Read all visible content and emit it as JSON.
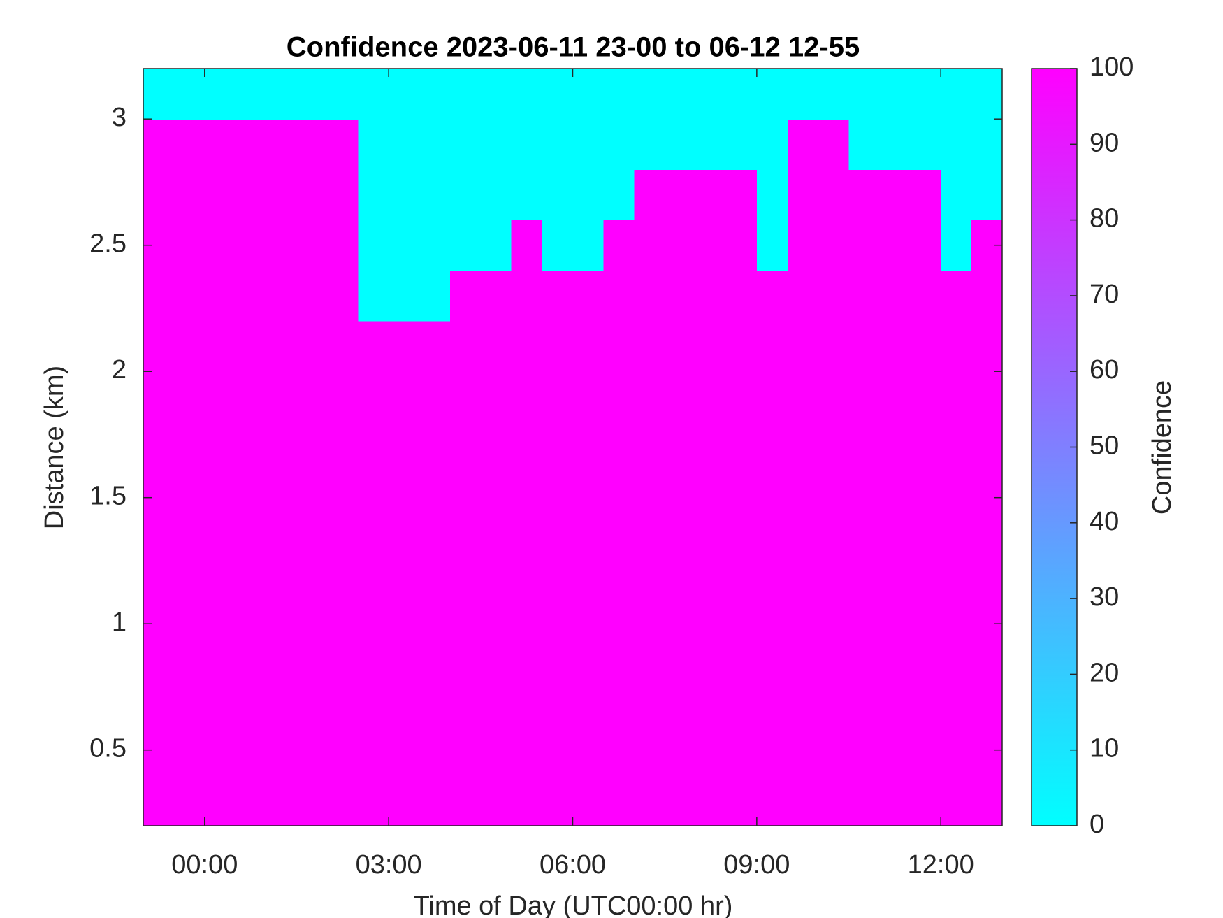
{
  "chart_data": {
    "type": "heatmap",
    "title": "Confidence 2023-06-11 23-00 to 06-12 12-55",
    "x_label": "Time of Day (UTC00:00 hr)",
    "y_label": "Distance (km)",
    "colorbar_label": "Confidence",
    "x": [
      -1,
      -0.5,
      0,
      0.5,
      1,
      1.5,
      2,
      2.5,
      3,
      3.5,
      4,
      4.5,
      5,
      5.5,
      6,
      6.5,
      7,
      7.5,
      8,
      8.5,
      9,
      9.5,
      10,
      10.5,
      11,
      11.5,
      12,
      12.5,
      13
    ],
    "y": [
      0.2,
      2.0,
      2.2,
      2.4,
      2.6,
      2.8,
      3.0,
      3.2
    ],
    "z": [
      [
        100,
        100,
        100,
        100,
        100,
        100,
        100,
        100,
        100,
        100,
        100,
        100,
        100,
        100,
        100,
        100,
        100,
        100,
        100,
        100,
        100,
        100,
        100,
        100,
        100,
        100,
        100,
        100
      ],
      [
        100,
        100,
        100,
        100,
        100,
        100,
        100,
        100,
        100,
        100,
        100,
        100,
        100,
        100,
        100,
        100,
        100,
        100,
        100,
        100,
        100,
        100,
        100,
        100,
        100,
        100,
        100,
        100
      ],
      [
        100,
        100,
        100,
        100,
        100,
        100,
        100,
        0,
        0,
        0,
        100,
        100,
        100,
        100,
        100,
        100,
        100,
        100,
        100,
        100,
        100,
        100,
        100,
        100,
        100,
        100,
        100,
        100
      ],
      [
        100,
        100,
        100,
        100,
        100,
        100,
        100,
        0,
        0,
        0,
        0,
        0,
        100,
        0,
        0,
        100,
        100,
        100,
        100,
        100,
        0,
        100,
        100,
        100,
        100,
        100,
        0,
        100
      ],
      [
        100,
        100,
        100,
        100,
        100,
        100,
        100,
        0,
        0,
        0,
        0,
        0,
        0,
        0,
        0,
        0,
        100,
        100,
        100,
        100,
        0,
        100,
        100,
        100,
        100,
        100,
        0,
        0
      ],
      [
        100,
        100,
        100,
        100,
        100,
        100,
        100,
        0,
        0,
        0,
        0,
        0,
        0,
        0,
        0,
        0,
        0,
        0,
        0,
        0,
        0,
        100,
        100,
        0,
        0,
        0,
        0,
        0
      ],
      [
        0,
        0,
        0,
        0,
        0,
        0,
        0,
        0,
        0,
        0,
        0,
        0,
        0,
        0,
        0,
        0,
        0,
        0,
        0,
        0,
        0,
        0,
        0,
        0,
        0,
        0,
        0,
        0
      ]
    ],
    "xlim": [
      -1,
      13
    ],
    "ylim": [
      0.2,
      3.2
    ],
    "xticks": [
      {
        "value": 0,
        "label": "00:00"
      },
      {
        "value": 3,
        "label": "03:00"
      },
      {
        "value": 6,
        "label": "06:00"
      },
      {
        "value": 9,
        "label": "09:00"
      },
      {
        "value": 12,
        "label": "12:00"
      }
    ],
    "yticks": [
      0.5,
      1,
      1.5,
      2,
      2.5,
      3
    ],
    "clim": [
      0,
      100
    ],
    "cticks": [
      0,
      10,
      20,
      30,
      40,
      50,
      60,
      70,
      80,
      90,
      100
    ],
    "colormap": [
      "#00ffff",
      "#ff00ff"
    ]
  }
}
